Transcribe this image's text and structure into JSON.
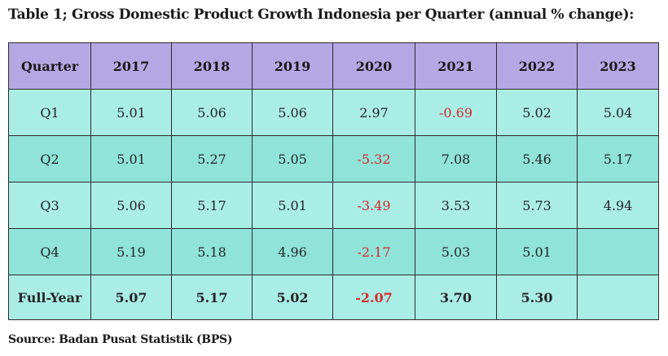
{
  "title": "Table 1; Gross Domestic Product Growth Indonesia per Quarter (annual % change):",
  "header": [
    "Quarter",
    "2017",
    "2018",
    "2019",
    "2020",
    "2021",
    "2022",
    "2023"
  ],
  "rows": [
    {
      "label": "Q1",
      "values": [
        "5.01",
        "5.06",
        "5.06",
        "2.97",
        "-0.69",
        "5.02",
        "5.04"
      ]
    },
    {
      "label": "Q2",
      "values": [
        "5.01",
        "5.27",
        "5.05",
        "-5.32",
        "7.08",
        "5.46",
        "5.17"
      ]
    },
    {
      "label": "Q3",
      "values": [
        "5.06",
        "5.17",
        "5.01",
        "-3.49",
        "3.53",
        "5.73",
        "4.94"
      ]
    },
    {
      "label": "Q4",
      "values": [
        "5.19",
        "5.18",
        "4.96",
        "-2.17",
        "5.03",
        "5.01",
        ""
      ]
    },
    {
      "label": "Full-Year",
      "values": [
        "5.07",
        "5.17",
        "5.02",
        "-2.07",
        "3.70",
        "5.30",
        ""
      ]
    }
  ],
  "colors": {
    "header_bg": "#b3a8e3",
    "row_light": "#a9ede5",
    "row_dark": "#8fe3d8",
    "negative": "#d22b2b"
  },
  "source": "Source: Badan Pusat Statistik (BPS)"
}
